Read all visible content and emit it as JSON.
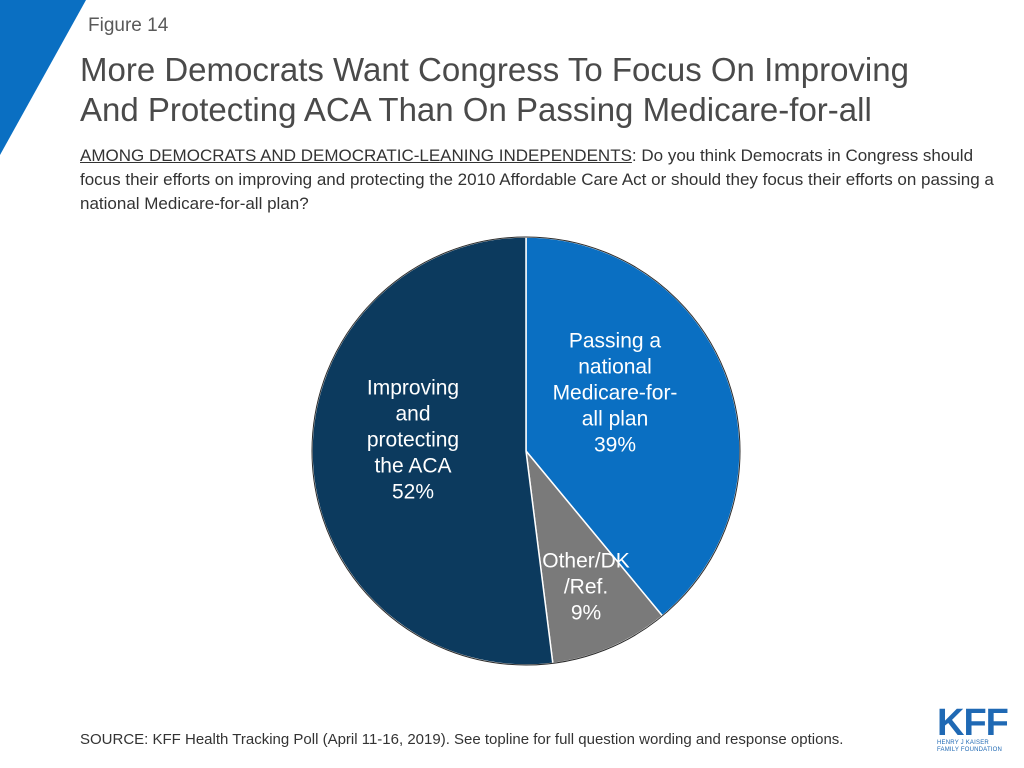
{
  "figure_label": "Figure 14",
  "title_line1": "More Democrats Want Congress To Focus On Improving",
  "title_line2": "And Protecting ACA Than On Passing Medicare-for-all",
  "question": {
    "lead": "AMONG DEMOCRATS AND DEMOCRATIC-LEANING INDEPENDENTS",
    "text": ": Do you think Democrats in Congress should focus their efforts on improving and protecting the 2010 Affordable Care Act or should they focus their efforts on passing a national Medicare-for-all plan?"
  },
  "chart_data": {
    "type": "pie",
    "title": "More Democrats Want Congress To Focus On Improving And Protecting ACA Than On Passing Medicare-for-all",
    "slices": [
      {
        "label_lines": [
          "Passing a",
          "national",
          "Medicare-for-",
          "all plan"
        ],
        "value": 39,
        "value_label": "39%",
        "color": "#0a6fc2",
        "label_color": "#ffffff"
      },
      {
        "label_lines": [
          "Other/DK",
          "/Ref."
        ],
        "value": 9,
        "value_label": "9%",
        "color": "#7a7a7a",
        "label_color": "#ffffff"
      },
      {
        "label_lines": [
          "Improving",
          "and",
          "protecting",
          "the ACA"
        ],
        "value": 52,
        "value_label": "52%",
        "color": "#0c3a5e",
        "label_color": "#ffffff"
      }
    ],
    "start": "12 o'clock",
    "direction": "clockwise"
  },
  "source": "SOURCE: KFF Health Tracking Poll (April 11-16, 2019). See topline for full question wording and response options.",
  "logo": {
    "mark": "KFF",
    "line1": "HENRY J KAISER",
    "line2": "FAMILY FOUNDATION"
  },
  "colors": {
    "accent": "#0a6fc2",
    "title": "#4a4a4a"
  }
}
